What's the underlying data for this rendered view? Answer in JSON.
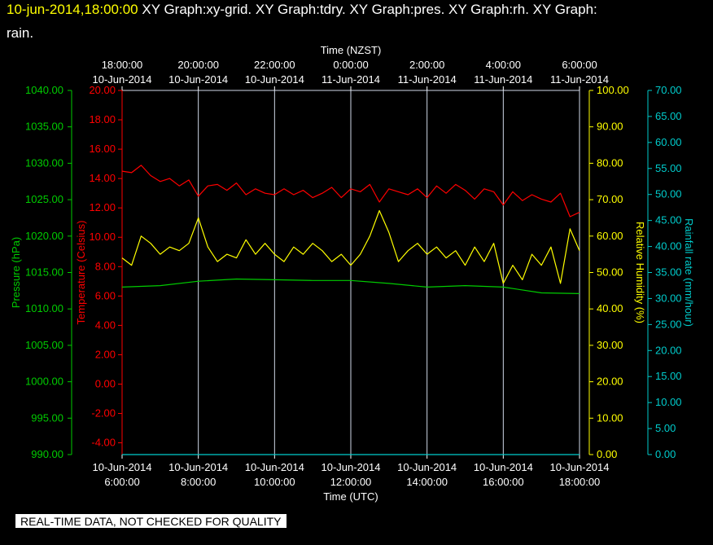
{
  "header": {
    "timestamp": "10-jun-2014,18:00:00",
    "line1_rest": "  XY Graph:xy-grid.  XY Graph:tdry.  XY Graph:pres.  XY Graph:rh.  XY Graph:",
    "line2": "rain."
  },
  "footer": {
    "note": "REAL-TIME DATA, NOT CHECKED FOR QUALITY"
  },
  "chart_data": {
    "type": "line",
    "top_axis": {
      "label": "Time (NZST)",
      "ticks": [
        {
          "time": "18:00:00",
          "date": "10-Jun-2014"
        },
        {
          "time": "20:00:00",
          "date": "10-Jun-2014"
        },
        {
          "time": "22:00:00",
          "date": "10-Jun-2014"
        },
        {
          "time": "0:00:00",
          "date": "11-Jun-2014"
        },
        {
          "time": "2:00:00",
          "date": "11-Jun-2014"
        },
        {
          "time": "4:00:00",
          "date": "11-Jun-2014"
        },
        {
          "time": "6:00:00",
          "date": "11-Jun-2014"
        }
      ]
    },
    "bottom_axis": {
      "label": "Time (UTC)",
      "ticks": [
        {
          "date": "10-Jun-2014",
          "time": "6:00:00"
        },
        {
          "date": "10-Jun-2014",
          "time": "8:00:00"
        },
        {
          "date": "10-Jun-2014",
          "time": "10:00:00"
        },
        {
          "date": "10-Jun-2014",
          "time": "12:00:00"
        },
        {
          "date": "10-Jun-2014",
          "time": "14:00:00"
        },
        {
          "date": "10-Jun-2014",
          "time": "16:00:00"
        },
        {
          "date": "10-Jun-2014",
          "time": "18:00:00"
        }
      ]
    },
    "x_range_hours_utc": [
      6,
      18
    ],
    "grid": true,
    "axes": {
      "pressure": {
        "label": "Pressure (hPa)",
        "ylim": [
          990,
          1040
        ],
        "ticks": [
          "990.00",
          "995.00",
          "1000.00",
          "1005.00",
          "1010.00",
          "1015.00",
          "1020.00",
          "1025.00",
          "1030.00",
          "1035.00",
          "1040.00"
        ],
        "color": "#00cc00"
      },
      "temperature": {
        "label": "Temperature (Celsius)",
        "ylim": [
          -4.8,
          20
        ],
        "ticks": [
          "-4.00",
          "-2.00",
          "0.00",
          "2.00",
          "4.00",
          "6.00",
          "8.00",
          "10.00",
          "12.00",
          "14.00",
          "16.00",
          "18.00",
          "20.00"
        ],
        "color": "#ff0000"
      },
      "humidity": {
        "label": "Relative Humidity (%)",
        "ylim": [
          0,
          100
        ],
        "ticks": [
          "0.00",
          "10.00",
          "20.00",
          "30.00",
          "40.00",
          "50.00",
          "60.00",
          "70.00",
          "80.00",
          "90.00",
          "100.00"
        ],
        "color": "#ffff00"
      },
      "rain": {
        "label": "Rainfall rate (mm/hour)",
        "ylim": [
          0,
          70
        ],
        "ticks": [
          "0.00",
          "5.00",
          "10.00",
          "15.00",
          "20.00",
          "25.00",
          "30.00",
          "35.00",
          "40.00",
          "45.00",
          "50.00",
          "55.00",
          "60.00",
          "65.00",
          "70.00"
        ],
        "color": "#00cccc"
      }
    },
    "series": [
      {
        "axis": "temperature",
        "color": "#ff0000",
        "x": [
          6.0,
          6.25,
          6.5,
          6.75,
          7.0,
          7.25,
          7.5,
          7.75,
          8.0,
          8.25,
          8.5,
          8.75,
          9.0,
          9.25,
          9.5,
          9.75,
          10.0,
          10.25,
          10.5,
          10.75,
          11.0,
          11.25,
          11.5,
          11.75,
          12.0,
          12.25,
          12.5,
          12.75,
          13.0,
          13.25,
          13.5,
          13.75,
          14.0,
          14.25,
          14.5,
          14.75,
          15.0,
          15.25,
          15.5,
          15.75,
          16.0,
          16.25,
          16.5,
          16.75,
          17.0,
          17.25,
          17.5,
          17.75,
          18.0
        ],
        "y": [
          14.5,
          14.4,
          14.9,
          14.2,
          13.8,
          14.0,
          13.5,
          13.9,
          12.8,
          13.5,
          13.6,
          13.2,
          13.7,
          12.9,
          13.3,
          13.0,
          12.9,
          13.3,
          12.9,
          13.2,
          12.7,
          13.0,
          13.4,
          12.7,
          13.3,
          13.1,
          13.6,
          12.4,
          13.3,
          13.1,
          12.9,
          13.3,
          12.7,
          13.5,
          13.0,
          13.6,
          13.2,
          12.6,
          13.3,
          13.1,
          12.2,
          13.1,
          12.5,
          12.9,
          12.6,
          12.4,
          13.0,
          11.4,
          11.7
        ]
      },
      {
        "axis": "humidity",
        "color": "#ffff00",
        "x": [
          6.0,
          6.25,
          6.5,
          6.75,
          7.0,
          7.25,
          7.5,
          7.75,
          8.0,
          8.25,
          8.5,
          8.75,
          9.0,
          9.25,
          9.5,
          9.75,
          10.0,
          10.25,
          10.5,
          10.75,
          11.0,
          11.25,
          11.5,
          11.75,
          12.0,
          12.25,
          12.5,
          12.75,
          13.0,
          13.25,
          13.5,
          13.75,
          14.0,
          14.25,
          14.5,
          14.75,
          15.0,
          15.25,
          15.5,
          15.75,
          16.0,
          16.25,
          16.5,
          16.75,
          17.0,
          17.25,
          17.5,
          17.75,
          18.0
        ],
        "y": [
          54,
          52,
          60,
          58,
          55,
          57,
          56,
          58,
          65,
          57,
          53,
          55,
          54,
          59,
          55,
          58,
          55,
          53,
          57,
          55,
          58,
          56,
          53,
          55,
          52,
          55,
          60,
          67,
          61,
          53,
          56,
          58,
          55,
          57,
          54,
          56,
          52,
          57,
          53,
          58,
          47,
          52,
          48,
          55,
          52,
          57,
          47,
          62,
          56
        ]
      },
      {
        "axis": "pressure",
        "color": "#00cc00",
        "x": [
          6.0,
          7.0,
          8.0,
          9.0,
          10.0,
          11.0,
          12.0,
          13.0,
          14.0,
          15.0,
          16.0,
          17.0,
          18.0
        ],
        "y": [
          1013.0,
          1013.2,
          1013.8,
          1014.1,
          1014.0,
          1013.9,
          1013.9,
          1013.5,
          1013.0,
          1013.2,
          1013.0,
          1012.2,
          1012.1
        ]
      },
      {
        "axis": "rain",
        "color": "#00cccc",
        "x": [
          6.0,
          18.0
        ],
        "y": [
          0.0,
          0.0
        ]
      }
    ]
  }
}
